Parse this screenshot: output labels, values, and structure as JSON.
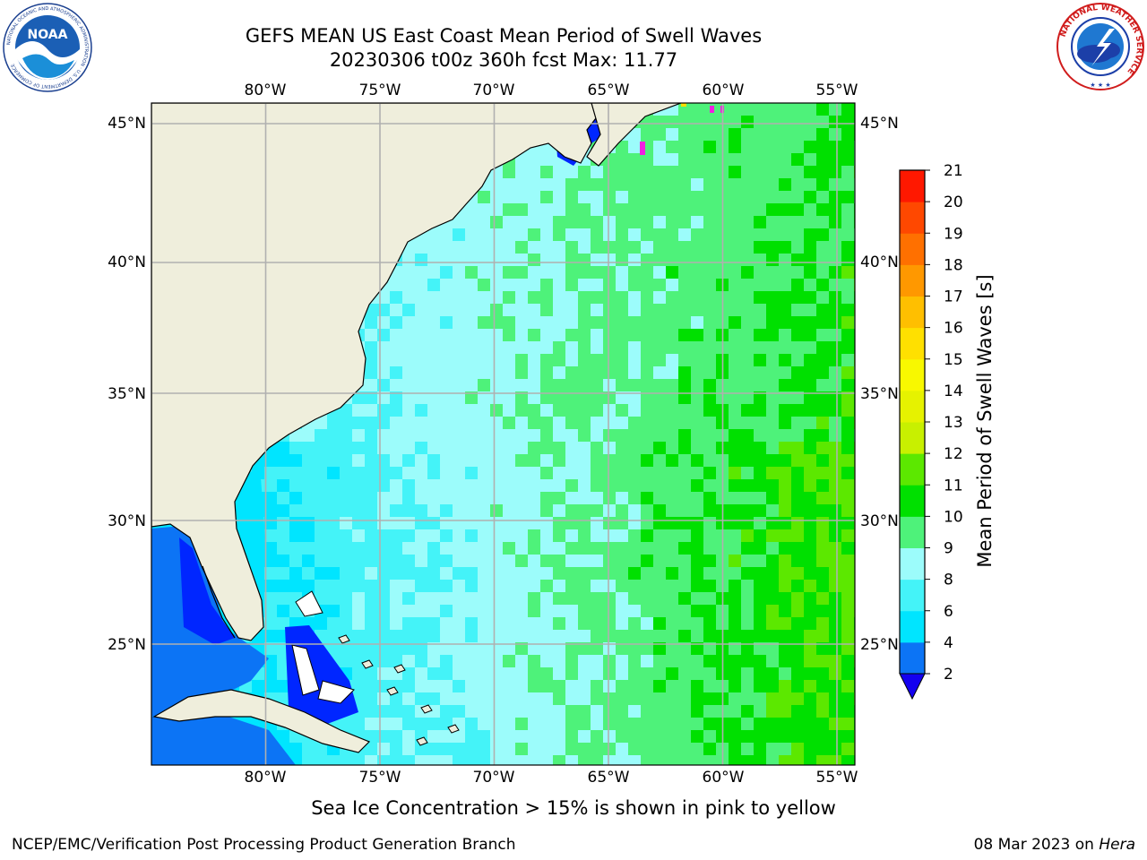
{
  "title": {
    "line1": "GEFS MEAN US East Coast Mean Period of Swell Waves",
    "line2": "20230306 t00z 360h fcst   Max: 11.77"
  },
  "map": {
    "lon_labels": [
      "80°W",
      "75°W",
      "70°W",
      "65°W",
      "60°W",
      "55°W"
    ],
    "lat_labels": [
      "45°N",
      "40°N",
      "35°N",
      "30°N",
      "25°N"
    ],
    "lon_range": [
      -85,
      -54
    ],
    "lat_range": [
      20.5,
      45.8
    ],
    "land_color": "#efeedc",
    "grid_color": "#b0b0b0"
  },
  "colorbar": {
    "title": "Mean Period of Swell Waves [s]",
    "ticks": [
      "2",
      "4",
      "6",
      "8",
      "9",
      "10",
      "11",
      "12",
      "13",
      "14",
      "15",
      "16",
      "17",
      "18",
      "19",
      "20",
      "21"
    ],
    "levels": [
      2,
      4,
      6,
      8,
      9,
      10,
      11,
      12,
      13,
      14,
      15,
      16,
      17,
      18,
      19,
      20,
      21
    ],
    "colors": [
      "#0c74f5",
      "#00e5ff",
      "#44f3f8",
      "#9cfcfb",
      "#4ef27a",
      "#00e000",
      "#5ce800",
      "#c8f000",
      "#e6f200",
      "#f8f800",
      "#ffe000",
      "#ffbf00",
      "#ff9800",
      "#ff7000",
      "#ff4800",
      "#ff1800"
    ],
    "extend_color": "#1400f0"
  },
  "ice_note": "Sea Ice Concentration > 15% is shown in pink to yellow",
  "footer": {
    "left": "NCEP/EMC/Verification Post Processing Product Generation Branch",
    "right_date": "08 Mar 2023 on ",
    "right_host": "Hera"
  },
  "logos": {
    "noaa_text": "NOAA",
    "noaa_ring": "NATIONAL OCEANIC AND ATMOSPHERIC ADMINISTRATION · U.S. DEPARTMENT OF COMMERCE",
    "nws_ring": "NATIONAL WEATHER SERVICE"
  }
}
